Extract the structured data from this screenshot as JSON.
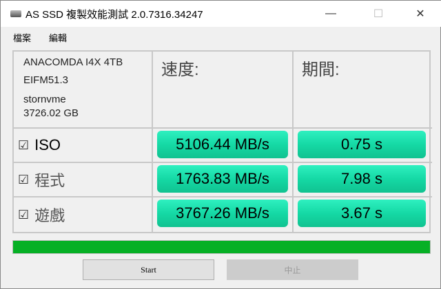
{
  "window": {
    "title": "AS SSD 複製效能測試 2.0.7316.34247",
    "minimize": "—",
    "maximize": "☐",
    "close": "✕"
  },
  "menu": [
    "檔案",
    "編輯"
  ],
  "drive": {
    "model": "ANACOMDA I4X 4TB",
    "firmware": "EIFM51.3",
    "driver": "stornvme",
    "size": "3726.02 GB"
  },
  "headers": {
    "speed": "速度:",
    "time": "期間:"
  },
  "rows": [
    {
      "label": "ISO",
      "checked": true,
      "speed": "5106.44 MB/s",
      "time": "0.75 s"
    },
    {
      "label": "程式",
      "checked": true,
      "speed": "1763.83 MB/s",
      "time": "7.98 s"
    },
    {
      "label": "遊戲",
      "checked": true,
      "speed": "3767.26 MB/s",
      "time": "3.67 s"
    }
  ],
  "checkbox_glyph": "☑",
  "progress": {
    "percent": 100,
    "color": "#06b025"
  },
  "buttons": {
    "start": "Start",
    "stop": "中止"
  }
}
